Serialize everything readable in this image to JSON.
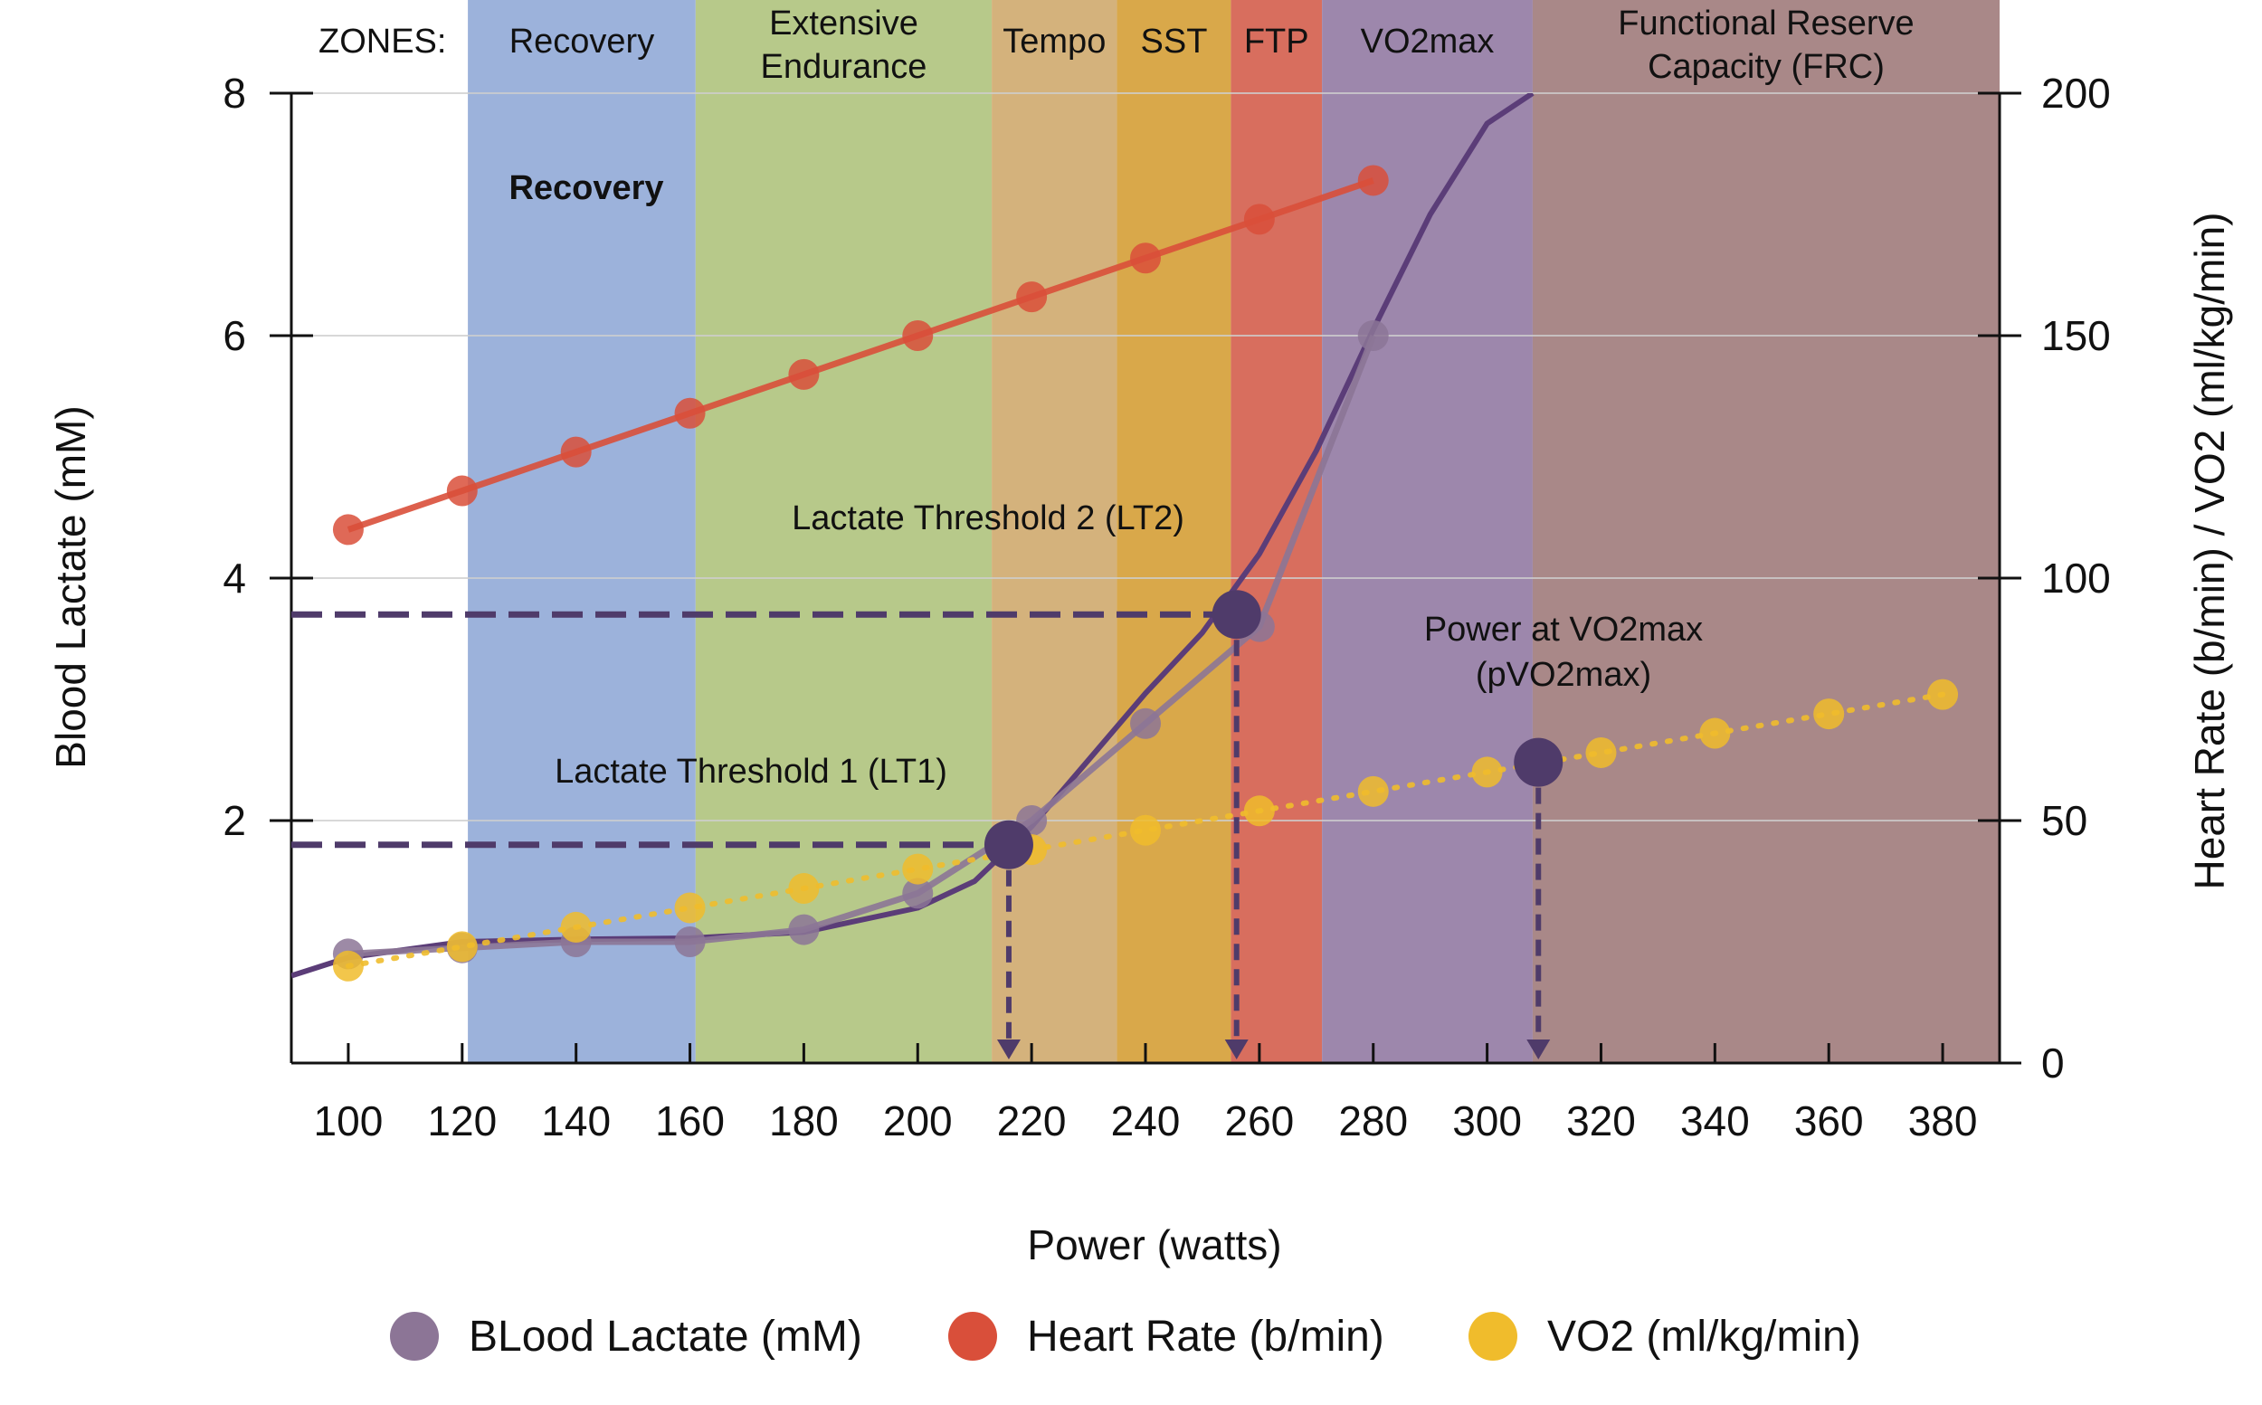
{
  "chart_data": {
    "type": "line",
    "xlabel": "Power (watts)",
    "ylabel": "Blood Lactate (mM)",
    "y2label": "Heart Rate (b/min) / VO2 (ml/kg/min)",
    "xlim": [
      90,
      390
    ],
    "ylim": [
      0,
      8
    ],
    "y2lim": [
      0,
      200
    ],
    "x_ticks": [
      100,
      120,
      140,
      160,
      180,
      200,
      220,
      240,
      260,
      280,
      300,
      320,
      340,
      360,
      380
    ],
    "y_ticks": [
      2,
      4,
      6,
      8
    ],
    "y2_ticks": [
      0,
      50,
      100,
      150,
      200
    ],
    "grid": "horizontal",
    "zones_title": "ZONES:",
    "zones": [
      {
        "lines": [
          "Recovery"
        ],
        "x0": 121,
        "x1": 161,
        "color": "#9cb2db"
      },
      {
        "lines": [
          "Extensive",
          "Endurance"
        ],
        "x0": 161,
        "x1": 213,
        "color": "#b7c98a"
      },
      {
        "lines": [
          "Tempo"
        ],
        "x0": 213,
        "x1": 235,
        "color": "#d4b27c"
      },
      {
        "lines": [
          "SST"
        ],
        "x0": 235,
        "x1": 255,
        "color": "#d9a84a"
      },
      {
        "lines": [
          "FTP"
        ],
        "x0": 255,
        "x1": 271,
        "color": "#d86e5e"
      },
      {
        "lines": [
          "VO2max"
        ],
        "x0": 271,
        "x1": 308,
        "color": "#9d87ac"
      },
      {
        "lines": [
          "Functional Reserve",
          "Capacity (FRC)"
        ],
        "x0": 308,
        "x1": 390,
        "color": "#a98888"
      }
    ],
    "series": [
      {
        "name": "BLood Lactate (mM)",
        "axis": "left",
        "color": "#8c7596",
        "x": [
          100,
          120,
          140,
          160,
          180,
          200,
          220,
          240,
          260,
          280
        ],
        "values": [
          0.9,
          0.95,
          1.0,
          1.0,
          1.1,
          1.4,
          2.0,
          2.8,
          3.6,
          6.0
        ]
      },
      {
        "name": "Heart Rate (b/min)",
        "axis": "right",
        "color": "#d94f3a",
        "x": [
          100,
          120,
          140,
          160,
          180,
          200,
          220,
          240,
          260,
          280
        ],
        "values": [
          110,
          118,
          126,
          134,
          142,
          150,
          158,
          166,
          174,
          182
        ]
      },
      {
        "name": "VO2 (ml/kg/min)",
        "axis": "right",
        "color": "#f0bc2c",
        "x": [
          100,
          120,
          140,
          160,
          180,
          200,
          220,
          240,
          260,
          280,
          300,
          320,
          340,
          360,
          380
        ],
        "values": [
          20,
          24,
          28,
          32,
          36,
          40,
          44,
          48,
          52,
          56,
          60,
          64,
          68,
          72,
          76
        ]
      }
    ],
    "fit_curve": {
      "color": "#5b3d78",
      "x": [
        90,
        100,
        120,
        140,
        160,
        180,
        200,
        210,
        220,
        230,
        240,
        250,
        260,
        270,
        280,
        290,
        300,
        308
      ],
      "values": [
        0.72,
        0.87,
        1.0,
        1.02,
        1.03,
        1.08,
        1.28,
        1.5,
        1.95,
        2.5,
        3.05,
        3.55,
        4.2,
        5.05,
        6.05,
        7.0,
        7.75,
        8.0
      ]
    },
    "markers": [
      {
        "label_lines": [
          "Lactate Threshold 1 (LT1)"
        ],
        "x": 216,
        "y": 1.8,
        "axis": "left"
      },
      {
        "label_lines": [
          "Lactate Threshold 2 (LT2)"
        ],
        "x": 256,
        "y": 3.7,
        "axis": "left"
      },
      {
        "label_lines": [
          "Power at VO2max",
          "(pVO2max)"
        ],
        "x": 309,
        "y": 62,
        "axis": "right"
      }
    ],
    "sub_label": "Recovery"
  }
}
